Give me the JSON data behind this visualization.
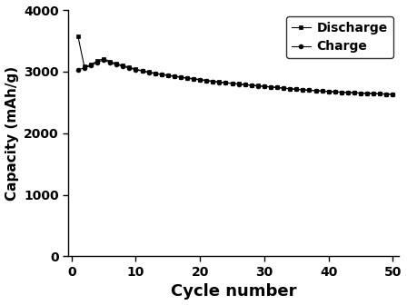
{
  "title": "",
  "xlabel": "Cycle number",
  "ylabel": "Capacity (mAh/g)",
  "xlim": [
    -0.5,
    51
  ],
  "ylim": [
    0,
    4000
  ],
  "xticks": [
    0,
    10,
    20,
    30,
    40,
    50
  ],
  "yticks": [
    0,
    1000,
    2000,
    3000,
    4000
  ],
  "discharge_x": [
    1,
    2,
    3,
    4,
    5,
    6,
    7,
    8,
    9,
    10,
    11,
    12,
    13,
    14,
    15,
    16,
    17,
    18,
    19,
    20,
    21,
    22,
    23,
    24,
    25,
    26,
    27,
    28,
    29,
    30,
    31,
    32,
    33,
    34,
    35,
    36,
    37,
    38,
    39,
    40,
    41,
    42,
    43,
    44,
    45,
    46,
    47,
    48,
    49,
    50
  ],
  "discharge_y": [
    3580,
    3080,
    3110,
    3175,
    3210,
    3165,
    3130,
    3100,
    3070,
    3040,
    3015,
    2995,
    2975,
    2958,
    2942,
    2928,
    2913,
    2898,
    2885,
    2873,
    2858,
    2843,
    2833,
    2822,
    2811,
    2800,
    2790,
    2781,
    2771,
    2762,
    2752,
    2742,
    2733,
    2723,
    2714,
    2706,
    2699,
    2692,
    2685,
    2678,
    2672,
    2667,
    2662,
    2657,
    2652,
    2648,
    2644,
    2640,
    2636,
    2632
  ],
  "charge_x": [
    1,
    2,
    3,
    4,
    5,
    6,
    7,
    8,
    9,
    10,
    11,
    12,
    13,
    14,
    15,
    16,
    17,
    18,
    19,
    20,
    21,
    22,
    23,
    24,
    25,
    26,
    27,
    28,
    29,
    30,
    31,
    32,
    33,
    34,
    35,
    36,
    37,
    38,
    39,
    40,
    41,
    42,
    43,
    44,
    45,
    46,
    47,
    48,
    49,
    50
  ],
  "charge_y": [
    3030,
    3060,
    3095,
    3150,
    3190,
    3145,
    3115,
    3085,
    3058,
    3032,
    3008,
    2988,
    2968,
    2952,
    2936,
    2921,
    2907,
    2893,
    2880,
    2867,
    2853,
    2839,
    2829,
    2818,
    2808,
    2797,
    2787,
    2778,
    2769,
    2759,
    2750,
    2741,
    2731,
    2722,
    2713,
    2705,
    2698,
    2691,
    2684,
    2677,
    2671,
    2666,
    2661,
    2656,
    2651,
    2647,
    2643,
    2639,
    2635,
    2631
  ],
  "discharge_color": "#000000",
  "charge_color": "#000000",
  "discharge_marker": "s",
  "charge_marker": "o",
  "markersize": 3.5,
  "linewidth": 0.8,
  "legend_labels": [
    "Discharge",
    "Charge"
  ],
  "legend_loc": "upper right",
  "background_color": "#ffffff",
  "axis_color": "#000000",
  "xlabel_fontsize": 13,
  "ylabel_fontsize": 11,
  "tick_fontsize": 10,
  "legend_fontsize": 10
}
